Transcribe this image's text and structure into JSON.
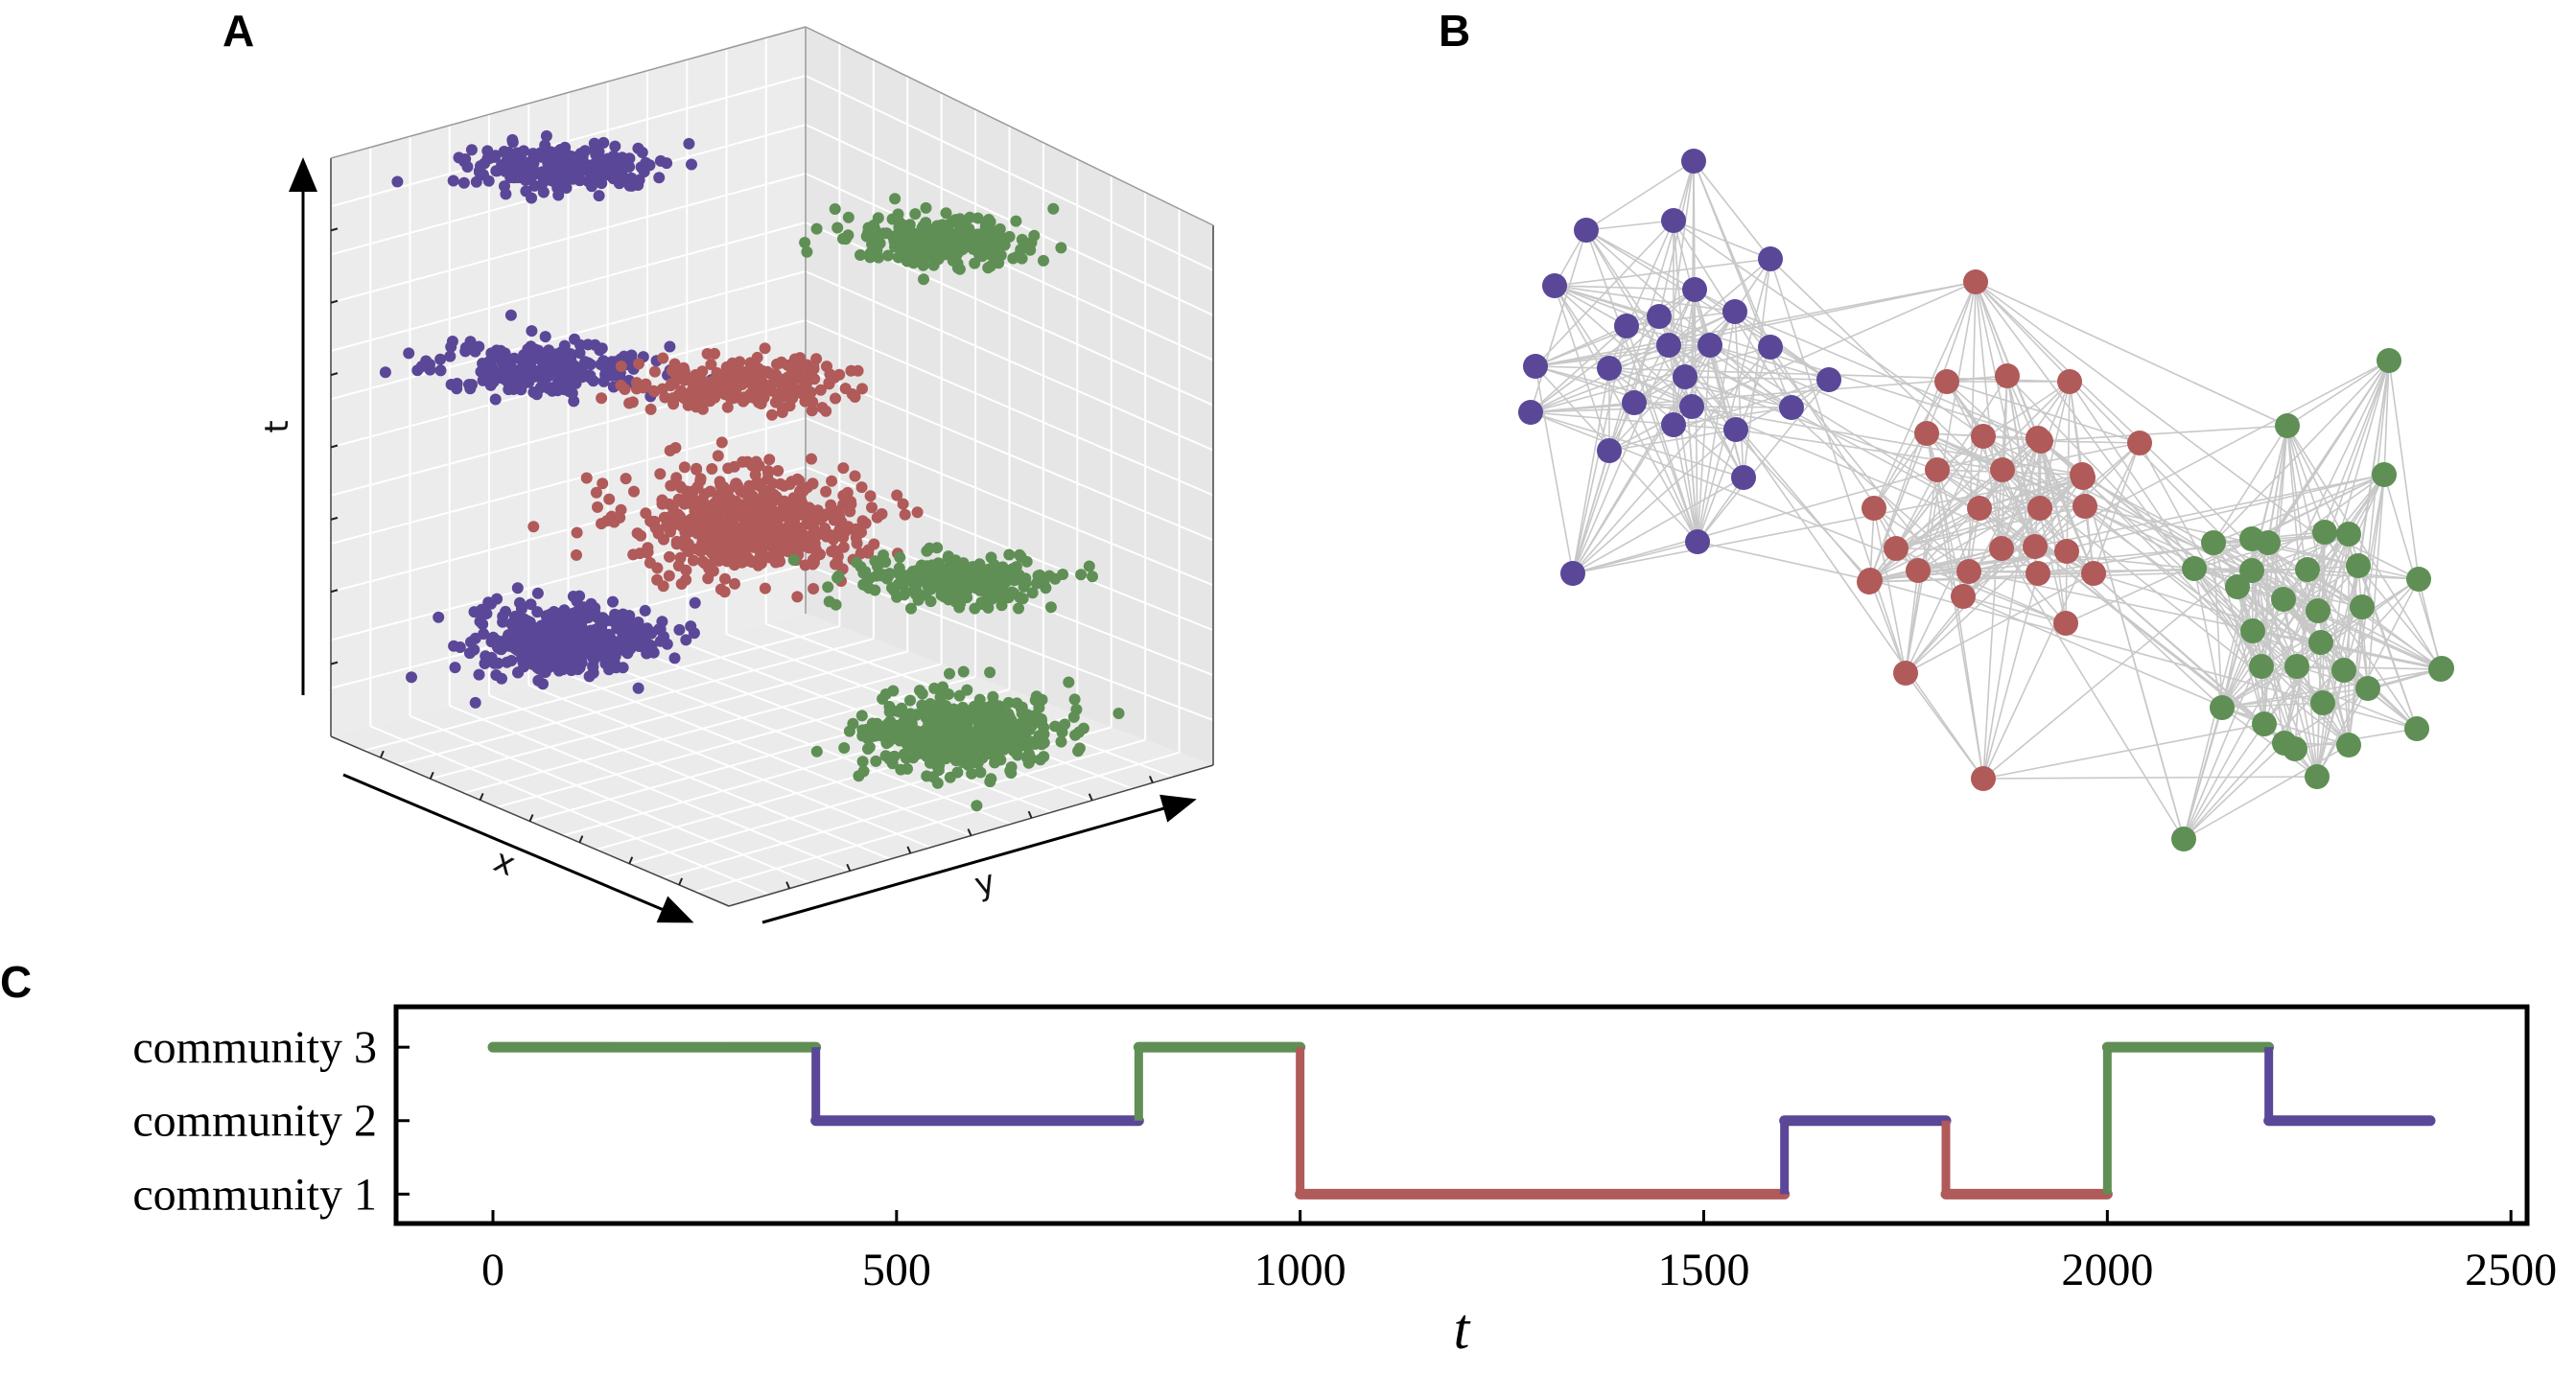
{
  "colors": {
    "community_1": "#b05a5a",
    "community_2": "#5b4797",
    "community_3": "#5f8f55",
    "edge": "#c8c8c8",
    "pane": "#ececec",
    "grid": "#ffffff"
  },
  "panel_labels": {
    "a": "A",
    "b": "B",
    "c": "C"
  },
  "panel_a": {
    "axis_labels": {
      "t": "t",
      "x": "x",
      "y": "y"
    },
    "grid": true
  },
  "panel_b": {
    "description_type": "network",
    "communities": [
      "community 1",
      "community 2",
      "community 3"
    ]
  },
  "chart_data": [
    {
      "type": "scatter",
      "panel": "A",
      "xlabel": "x",
      "ylabel": "y",
      "zlabel": "t",
      "grid": true,
      "series": [
        {
          "name": "community 1",
          "color": "#b05a5a"
        },
        {
          "name": "community 2",
          "color": "#5b4797"
        },
        {
          "name": "community 3",
          "color": "#5f8f55"
        }
      ]
    },
    {
      "type": "line",
      "panel": "C",
      "xlabel": "t",
      "ylabel": "",
      "xlim": [
        -120,
        2520
      ],
      "ylim": [
        0.6,
        3.55
      ],
      "xticks": [
        0,
        500,
        1000,
        1500,
        2000,
        2500
      ],
      "yticks": [
        1,
        2,
        3
      ],
      "ytick_labels": [
        "community 1",
        "community 2",
        "community 3"
      ],
      "segments": [
        {
          "t_start": 0,
          "t_end": 400,
          "community": 3,
          "color": "#5f8f55"
        },
        {
          "t_start": 400,
          "t_end": 800,
          "community": 2,
          "color": "#5b4797"
        },
        {
          "t_start": 800,
          "t_end": 1000,
          "community": 3,
          "color": "#5f8f55"
        },
        {
          "t_start": 1000,
          "t_end": 1600,
          "community": 1,
          "color": "#b05a5a"
        },
        {
          "t_start": 1600,
          "t_end": 1800,
          "community": 2,
          "color": "#5b4797"
        },
        {
          "t_start": 1800,
          "t_end": 2000,
          "community": 1,
          "color": "#b05a5a"
        },
        {
          "t_start": 2000,
          "t_end": 2200,
          "community": 3,
          "color": "#5f8f55"
        },
        {
          "t_start": 2200,
          "t_end": 2400,
          "community": 2,
          "color": "#5b4797"
        }
      ]
    }
  ]
}
